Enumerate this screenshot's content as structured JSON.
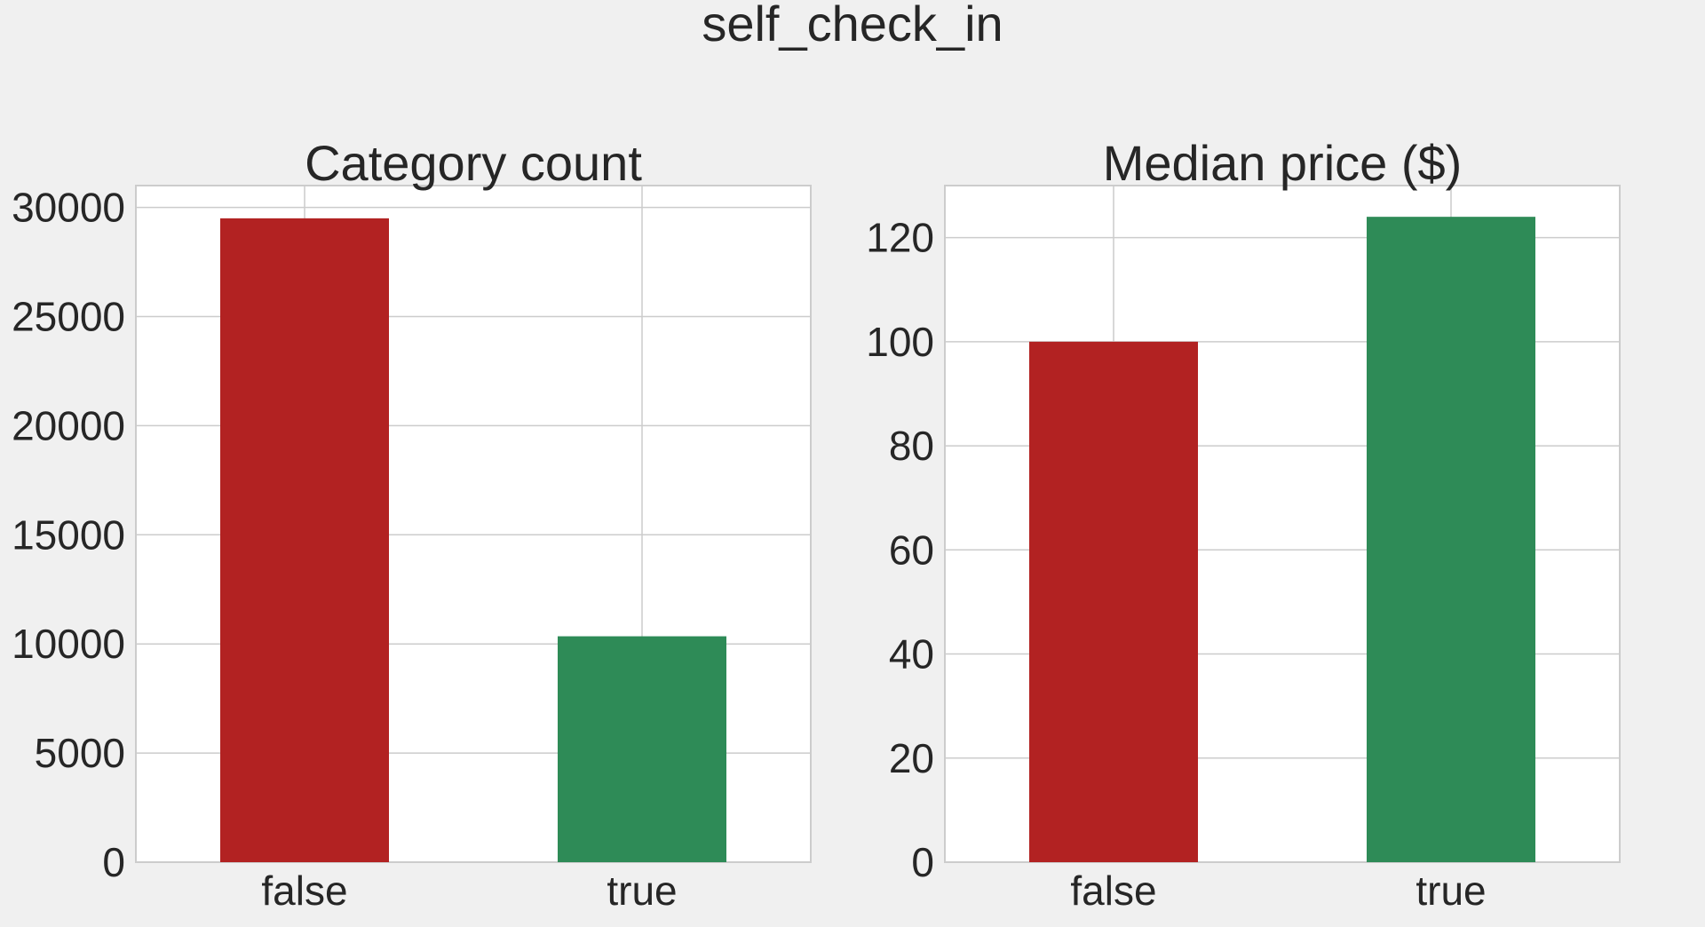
{
  "figure": {
    "title": "self_check_in",
    "background": "#f0f0f0"
  },
  "chart_data": [
    {
      "type": "bar",
      "title": "Category count",
      "xlabel": "",
      "ylabel": "",
      "categories": [
        "false",
        "true"
      ],
      "values": [
        29500,
        10350
      ],
      "colors": [
        "#b22222",
        "#2e8b57"
      ],
      "ylim": [
        0,
        31000
      ],
      "yticks": [
        0,
        5000,
        10000,
        15000,
        20000,
        25000,
        30000
      ],
      "ytick_labels": [
        "0",
        "5000",
        "10000",
        "15000",
        "20000",
        "25000",
        "30000"
      ],
      "grid": true
    },
    {
      "type": "bar",
      "title": "Median price ($)",
      "xlabel": "",
      "ylabel": "",
      "categories": [
        "false",
        "true"
      ],
      "values": [
        100,
        124
      ],
      "colors": [
        "#b22222",
        "#2e8b57"
      ],
      "ylim": [
        0,
        130
      ],
      "yticks": [
        0,
        20,
        40,
        60,
        80,
        100,
        120
      ],
      "ytick_labels": [
        "0",
        "20",
        "40",
        "60",
        "80",
        "100",
        "120"
      ],
      "grid": true
    }
  ]
}
